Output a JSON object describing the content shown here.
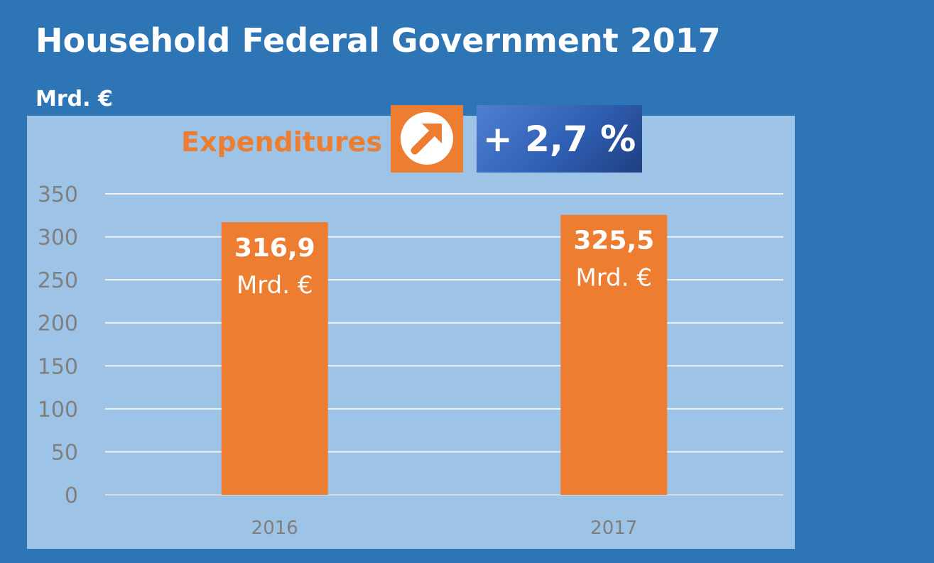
{
  "header": {
    "title": "Household Federal Government 2017",
    "unit_label": "Mrd. €"
  },
  "callout": {
    "label": "Expenditures",
    "icon": "up-right-arrow-icon",
    "change": "+ 2,7 %"
  },
  "colors": {
    "background": "#2e75b6",
    "panel": "#9dc3e6",
    "bar": "#ed7d31",
    "badge": "#2f5fb3"
  },
  "chart_data": {
    "type": "bar",
    "categories": [
      "2016",
      "2017"
    ],
    "values": [
      316.9,
      325.5
    ],
    "value_labels": [
      "316,9",
      "325,5"
    ],
    "value_unit": "Mrd. €",
    "ylim": [
      0,
      350
    ],
    "yticks": [
      0,
      50,
      100,
      150,
      200,
      250,
      300,
      350
    ],
    "grid": true,
    "legend": "none"
  }
}
